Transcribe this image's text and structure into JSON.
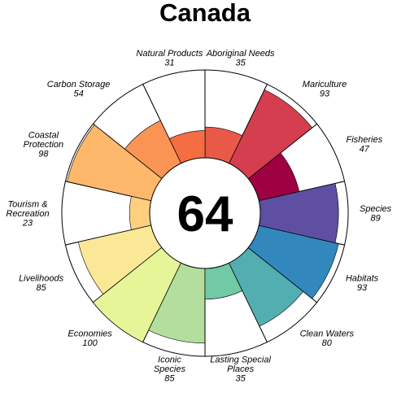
{
  "chart_data": {
    "type": "flower",
    "title": "Canada",
    "score": "64",
    "max": 100,
    "petals": [
      {
        "name": "Fisheries",
        "label_lines": [
          "Fisheries"
        ],
        "value": 47,
        "color": "#9E0142"
      },
      {
        "name": "Mariculture",
        "label_lines": [
          "Mariculture"
        ],
        "value": 93,
        "color": "#D53E4F"
      },
      {
        "name": "Aboriginal Needs",
        "label_lines": [
          "Aboriginal Needs"
        ],
        "value": 35,
        "color": "#E85A47"
      },
      {
        "name": "Natural Products",
        "label_lines": [
          "Natural Products"
        ],
        "value": 31,
        "color": "#F46D43"
      },
      {
        "name": "Carbon Storage",
        "label_lines": [
          "Carbon Storage"
        ],
        "value": 54,
        "color": "#FA9455"
      },
      {
        "name": "Coastal Protection",
        "label_lines": [
          "Coastal",
          "Protection"
        ],
        "value": 98,
        "color": "#FDB86B"
      },
      {
        "name": "Tourism & Recreation",
        "label_lines": [
          "Tourism &",
          "Recreation"
        ],
        "value": 23,
        "color": "#FDCF7E"
      },
      {
        "name": "Livelihoods",
        "label_lines": [
          "Livelihoods"
        ],
        "value": 85,
        "color": "#FAE896"
      },
      {
        "name": "Economies",
        "label_lines": [
          "Economies"
        ],
        "value": 100,
        "color": "#E6F598"
      },
      {
        "name": "Iconic Species",
        "label_lines": [
          "Iconic",
          "Species"
        ],
        "value": 85,
        "color": "#B3DE9E"
      },
      {
        "name": "Lasting Special Places",
        "label_lines": [
          "Lasting Special",
          "Places"
        ],
        "value": 35,
        "color": "#72C9A5"
      },
      {
        "name": "Clean Waters",
        "label_lines": [
          "Clean Waters"
        ],
        "value": 80,
        "color": "#53AEB1"
      },
      {
        "name": "Habitats",
        "label_lines": [
          "Habitats"
        ],
        "value": 93,
        "color": "#3288BD"
      },
      {
        "name": "Species",
        "label_lines": [
          "Species"
        ],
        "value": 89,
        "color": "#5E4FA2"
      }
    ]
  }
}
